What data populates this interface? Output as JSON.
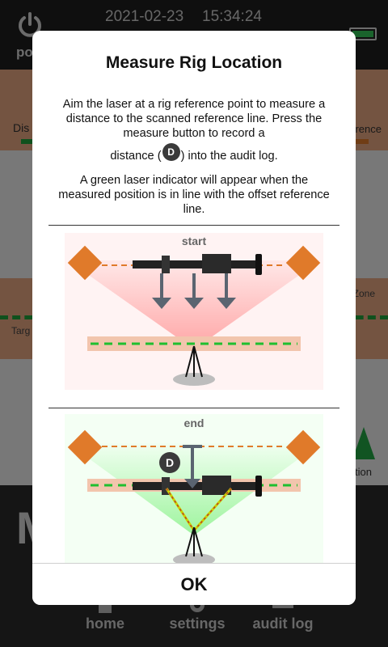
{
  "status_bar": {
    "date": "2021-02-23",
    "time": "15:34:24",
    "power_label": "pow"
  },
  "background": {
    "band1_left": "Dis",
    "band1_right": "rence",
    "band2_left": "Targ",
    "band2_right": "Zone",
    "mid2_right": "tion",
    "big_letter": "M"
  },
  "nav": {
    "home": "home",
    "settings": "settings",
    "audit_log": "audit log"
  },
  "dialog": {
    "title": "Measure Rig Location",
    "para1_line1": "Aim the laser at a rig reference point to measure a distance to the scanned reference line. Press the measure button to record a",
    "para1_pre": "distance (",
    "badge": "D",
    "para1_post": ") into the audit log.",
    "para2": "A green laser indicator will appear when the measured position is in line with the offset reference line.",
    "diagram_start_label": "start",
    "diagram_end_label": "end",
    "ok_label": "OK"
  },
  "colors": {
    "accent_orange": "#e07a2a",
    "laser_green": "#1fbf2f",
    "band_peach": "#f2c5ad"
  }
}
